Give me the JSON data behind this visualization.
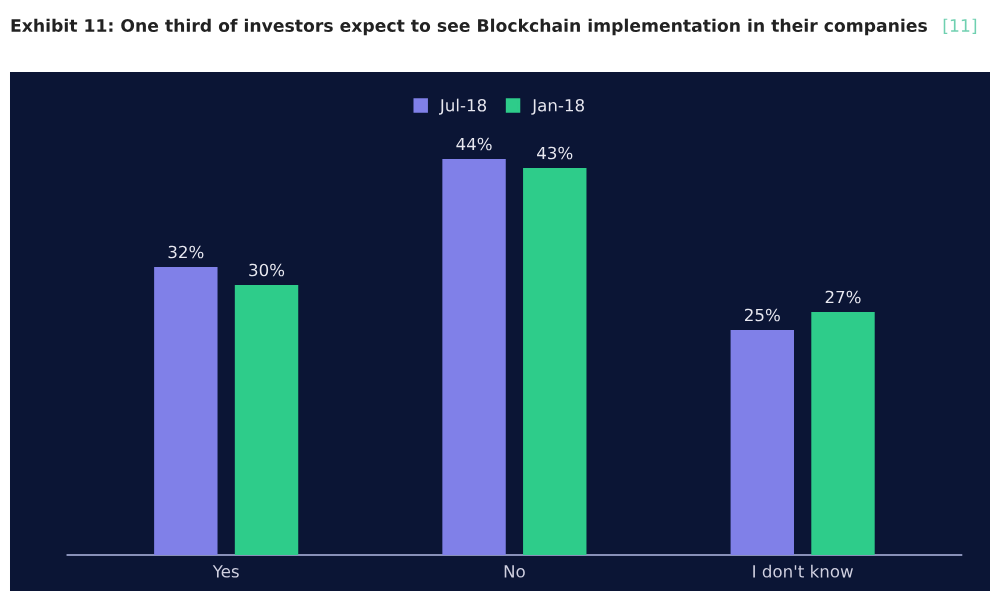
{
  "chart_data": {
    "type": "bar",
    "title": "Exhibit 11: One third of investors expect to see Blockchain implementation in their companies",
    "annotations": [
      "[11]"
    ],
    "categories": [
      "Yes",
      "No",
      "I don't know"
    ],
    "series": [
      {
        "name": "Jul-18",
        "color": "#8080e8",
        "values": [
          32,
          44,
          25
        ],
        "value_labels": [
          "32%",
          "44%",
          "25%"
        ]
      },
      {
        "name": "Jan-18",
        "color": "#2ecc8a",
        "values": [
          30,
          43,
          27
        ],
        "value_labels": [
          "30%",
          "43%",
          "27%"
        ]
      }
    ],
    "legend": "top",
    "grid": false
  }
}
